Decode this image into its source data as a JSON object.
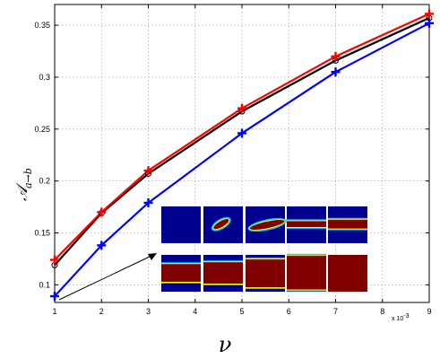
{
  "chart_data": {
    "type": "line",
    "x": [
      1,
      2,
      3,
      5,
      7,
      9
    ],
    "x_scale_note": "x 10",
    "x_scale_exp": "-3",
    "xlabel": "ν",
    "ylabel": "𝒜",
    "ylabel_sub": "a→b",
    "xlim": [
      1,
      9
    ],
    "ylim": [
      0.083,
      0.37
    ],
    "xticks": [
      "1",
      "2",
      "3",
      "4",
      "5",
      "6",
      "7",
      "8",
      "9"
    ],
    "yticks": [
      "0.1",
      "0.15",
      "0.2",
      "0.25",
      "0.3",
      "0.35"
    ],
    "grid": true,
    "series": [
      {
        "color": "#ff0000",
        "marker": "plus",
        "values": [
          0.124,
          0.17,
          0.21,
          0.27,
          0.32,
          0.361
        ]
      },
      {
        "color": "#000000",
        "marker": "circle",
        "values": [
          0.119,
          0.169,
          0.207,
          0.267,
          0.316,
          0.357
        ]
      },
      {
        "color": "#0000ff",
        "marker": "plus",
        "values": [
          0.089,
          0.138,
          0.179,
          0.246,
          0.305,
          0.352
        ]
      }
    ],
    "inset": {
      "description_panels": 10,
      "colors": {
        "background": "#00008f",
        "fill": "#800000",
        "edge": "#ffff00"
      }
    }
  }
}
